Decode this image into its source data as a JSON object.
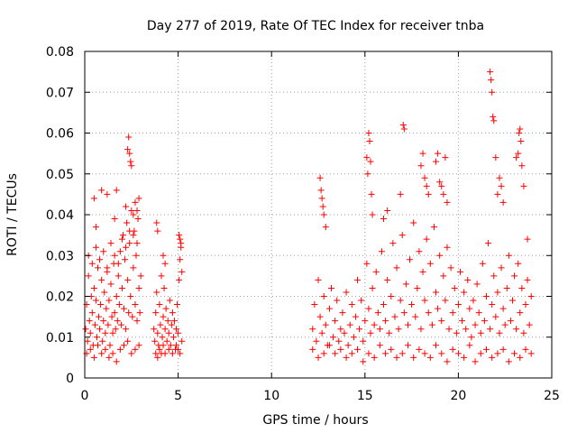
{
  "chart_data": {
    "type": "scatter",
    "title": "Day 277 of 2019, Rate Of TEC Index for receiver tnba",
    "xlabel": "GPS time / hours",
    "ylabel": "ROTI / TECUs",
    "xlim": [
      0,
      25
    ],
    "ylim": [
      0,
      0.08
    ],
    "xticks": [
      0,
      5,
      10,
      15,
      20,
      25
    ],
    "xtick_labels": [
      "0",
      "5",
      "10",
      "15",
      "20",
      "25"
    ],
    "yticks": [
      0,
      0.01,
      0.02,
      0.03,
      0.04,
      0.05,
      0.06,
      0.07,
      0.08
    ],
    "ytick_labels": [
      "0",
      "0.01",
      "0.02",
      "0.03",
      "0.04",
      "0.05",
      "0.06",
      "0.07",
      "0.08"
    ],
    "grid": true,
    "legend": "none",
    "marker": "plus",
    "color": "#ff0000",
    "series": [
      {
        "x": [
          0.05,
          0.1,
          0.15,
          0.2,
          0.25,
          0.3,
          0.35,
          0.4,
          0.45,
          0.5,
          0.55,
          0.6,
          0.65,
          0.7,
          0.75,
          0.8,
          0.85,
          0.9,
          0.95,
          1.0,
          1.05,
          1.1,
          1.15,
          1.2,
          1.25,
          1.3,
          1.35,
          1.4,
          1.45,
          1.5,
          1.55,
          1.6,
          1.65,
          1.7,
          1.75,
          1.8,
          1.85,
          1.9,
          1.95,
          2.0,
          2.05,
          2.1,
          2.15,
          2.2,
          2.25,
          2.3,
          2.35,
          2.4,
          2.45,
          2.5,
          2.55,
          2.6,
          2.65,
          2.7,
          2.75,
          2.8,
          2.85,
          2.9,
          2.95,
          3.0,
          0.1,
          0.3,
          0.5,
          0.7,
          0.9,
          1.1,
          1.3,
          1.5,
          1.7,
          1.9,
          2.1,
          2.3,
          2.5,
          2.7,
          2.9,
          0.2,
          0.4,
          0.6,
          0.8,
          1.0,
          1.2,
          1.4,
          1.6,
          1.8,
          2.0,
          2.2,
          2.4,
          2.6,
          2.8,
          0.5,
          0.6,
          0.9,
          1.2,
          1.6,
          1.7,
          2.2,
          2.3,
          2.35,
          2.4,
          2.45,
          2.5,
          2.6,
          2.7,
          2.8,
          2.9
        ],
        "y": [
          0.012,
          0.018,
          0.009,
          0.025,
          0.014,
          0.011,
          0.02,
          0.016,
          0.008,
          0.022,
          0.013,
          0.019,
          0.01,
          0.027,
          0.015,
          0.012,
          0.018,
          0.024,
          0.009,
          0.014,
          0.021,
          0.011,
          0.017,
          0.026,
          0.013,
          0.019,
          0.008,
          0.023,
          0.015,
          0.011,
          0.028,
          0.016,
          0.012,
          0.02,
          0.014,
          0.025,
          0.018,
          0.031,
          0.013,
          0.022,
          0.035,
          0.017,
          0.029,
          0.012,
          0.038,
          0.024,
          0.016,
          0.033,
          0.02,
          0.041,
          0.015,
          0.027,
          0.036,
          0.018,
          0.03,
          0.014,
          0.039,
          0.022,
          0.016,
          0.025,
          0.006,
          0.007,
          0.005,
          0.008,
          0.006,
          0.007,
          0.005,
          0.006,
          0.004,
          0.007,
          0.008,
          0.009,
          0.006,
          0.007,
          0.008,
          0.03,
          0.028,
          0.032,
          0.029,
          0.031,
          0.027,
          0.033,
          0.03,
          0.028,
          0.034,
          0.032,
          0.036,
          0.035,
          0.033,
          0.044,
          0.037,
          0.046,
          0.045,
          0.039,
          0.046,
          0.042,
          0.056,
          0.059,
          0.055,
          0.053,
          0.052,
          0.04,
          0.043,
          0.041,
          0.044
        ]
      },
      {
        "x": [
          3.7,
          3.75,
          3.8,
          3.85,
          3.9,
          3.95,
          4.0,
          4.05,
          4.1,
          4.15,
          4.2,
          4.25,
          4.3,
          4.35,
          4.4,
          4.45,
          4.5,
          4.55,
          4.6,
          4.65,
          4.7,
          4.75,
          4.8,
          4.85,
          4.9,
          4.95,
          5.0,
          5.05,
          5.1,
          5.15,
          5.2,
          3.8,
          3.9,
          4.0,
          4.1,
          4.2,
          4.3,
          4.5,
          4.7,
          4.9,
          5.0,
          5.1,
          5.2,
          3.85,
          3.9,
          4.2,
          4.3,
          5.05,
          5.1,
          5.15
        ],
        "y": [
          0.012,
          0.009,
          0.016,
          0.021,
          0.011,
          0.008,
          0.018,
          0.013,
          0.025,
          0.01,
          0.015,
          0.022,
          0.012,
          0.017,
          0.009,
          0.014,
          0.011,
          0.019,
          0.008,
          0.013,
          0.016,
          0.01,
          0.014,
          0.007,
          0.012,
          0.018,
          0.011,
          0.024,
          0.029,
          0.033,
          0.026,
          0.006,
          0.005,
          0.007,
          0.006,
          0.008,
          0.006,
          0.007,
          0.006,
          0.008,
          0.007,
          0.006,
          0.009,
          0.038,
          0.036,
          0.03,
          0.028,
          0.035,
          0.034,
          0.032
        ]
      },
      {
        "x": [
          12.2,
          12.3,
          12.4,
          12.5,
          12.6,
          12.7,
          12.8,
          12.9,
          13.0,
          13.1,
          13.2,
          13.3,
          13.4,
          13.5,
          13.6,
          13.7,
          13.8,
          13.9,
          14.0,
          14.1,
          14.2,
          14.3,
          14.4,
          14.5,
          14.6,
          14.7,
          14.8,
          14.9,
          15.0,
          15.1,
          15.2,
          15.3,
          15.4,
          15.5,
          15.6,
          15.7,
          15.8,
          15.9,
          16.0,
          16.1,
          16.2,
          16.3,
          16.4,
          16.5,
          16.6,
          16.7,
          16.8,
          16.9,
          17.0,
          17.1,
          17.2,
          17.3,
          17.4,
          17.5,
          17.6,
          17.7,
          17.8,
          17.9,
          18.0,
          18.1,
          18.2,
          18.3,
          18.4,
          18.5,
          18.6,
          18.7,
          18.8,
          18.9,
          19.0,
          19.1,
          19.2,
          19.3,
          19.4,
          19.5,
          19.6,
          19.7,
          19.8,
          19.9,
          20.0,
          20.1,
          20.2,
          20.3,
          20.4,
          20.5,
          20.6,
          20.7,
          20.8,
          20.9,
          21.0,
          21.1,
          21.2,
          21.3,
          21.4,
          21.5,
          21.6,
          21.7,
          21.8,
          21.9,
          22.0,
          22.1,
          22.2,
          22.3,
          22.4,
          22.5,
          22.6,
          22.7,
          22.8,
          22.9,
          23.0,
          23.1,
          23.2,
          23.3,
          23.4,
          23.5,
          23.6,
          23.7,
          23.8,
          23.9
        ],
        "y": [
          0.012,
          0.018,
          0.009,
          0.024,
          0.015,
          0.011,
          0.02,
          0.013,
          0.008,
          0.017,
          0.022,
          0.01,
          0.014,
          0.019,
          0.009,
          0.012,
          0.016,
          0.011,
          0.021,
          0.008,
          0.013,
          0.018,
          0.01,
          0.015,
          0.024,
          0.012,
          0.019,
          0.009,
          0.014,
          0.028,
          0.017,
          0.011,
          0.022,
          0.013,
          0.026,
          0.016,
          0.012,
          0.031,
          0.018,
          0.014,
          0.024,
          0.011,
          0.02,
          0.033,
          0.015,
          0.027,
          0.012,
          0.019,
          0.035,
          0.016,
          0.023,
          0.013,
          0.029,
          0.018,
          0.038,
          0.015,
          0.022,
          0.031,
          0.012,
          0.026,
          0.019,
          0.034,
          0.016,
          0.028,
          0.013,
          0.037,
          0.021,
          0.017,
          0.03,
          0.014,
          0.025,
          0.019,
          0.032,
          0.012,
          0.027,
          0.016,
          0.022,
          0.011,
          0.018,
          0.026,
          0.014,
          0.021,
          0.012,
          0.024,
          0.017,
          0.01,
          0.019,
          0.013,
          0.023,
          0.016,
          0.011,
          0.028,
          0.014,
          0.02,
          0.033,
          0.012,
          0.018,
          0.025,
          0.015,
          0.021,
          0.011,
          0.027,
          0.017,
          0.013,
          0.022,
          0.03,
          0.014,
          0.019,
          0.025,
          0.012,
          0.028,
          0.016,
          0.022,
          0.011,
          0.018,
          0.024,
          0.013,
          0.02
        ]
      },
      {
        "x": [
          12.2,
          12.5,
          12.8,
          13.1,
          13.4,
          13.7,
          14.0,
          14.3,
          14.6,
          14.9,
          15.2,
          15.5,
          15.8,
          16.1,
          16.4,
          16.7,
          17.0,
          17.3,
          17.6,
          17.9,
          18.2,
          18.5,
          18.8,
          19.1,
          19.4,
          19.7,
          20.0,
          20.3,
          20.6,
          20.9,
          21.2,
          21.5,
          21.8,
          22.1,
          22.4,
          22.7,
          23.0,
          23.3,
          23.6,
          23.9
        ],
        "y": [
          0.007,
          0.005,
          0.006,
          0.008,
          0.006,
          0.007,
          0.005,
          0.006,
          0.007,
          0.004,
          0.006,
          0.005,
          0.008,
          0.006,
          0.007,
          0.005,
          0.006,
          0.008,
          0.005,
          0.007,
          0.006,
          0.005,
          0.008,
          0.006,
          0.004,
          0.007,
          0.006,
          0.005,
          0.008,
          0.004,
          0.006,
          0.007,
          0.005,
          0.006,
          0.007,
          0.004,
          0.006,
          0.005,
          0.007,
          0.006
        ]
      },
      {
        "x": [
          12.6,
          12.65,
          12.7,
          12.75,
          12.8,
          12.9,
          15.1,
          15.15,
          15.2,
          15.25,
          15.3,
          15.35,
          15.4,
          16.0,
          16.2,
          16.9,
          17.05,
          17.1,
          18.0,
          18.1,
          18.2,
          18.3,
          18.4,
          18.8,
          18.9,
          19.0,
          19.1,
          19.2,
          19.3,
          19.4,
          21.7,
          21.75,
          21.8,
          21.85,
          21.9,
          22.0,
          22.1,
          22.2,
          22.3,
          22.4,
          23.1,
          23.2,
          23.25,
          23.3,
          23.35,
          23.4,
          23.5,
          23.7
        ],
        "y": [
          0.049,
          0.046,
          0.044,
          0.042,
          0.04,
          0.037,
          0.054,
          0.05,
          0.06,
          0.058,
          0.053,
          0.045,
          0.04,
          0.039,
          0.041,
          0.045,
          0.062,
          0.061,
          0.052,
          0.055,
          0.049,
          0.047,
          0.045,
          0.053,
          0.055,
          0.048,
          0.047,
          0.045,
          0.054,
          0.043,
          0.075,
          0.073,
          0.07,
          0.064,
          0.063,
          0.054,
          0.045,
          0.049,
          0.047,
          0.043,
          0.054,
          0.055,
          0.06,
          0.061,
          0.058,
          0.052,
          0.047,
          0.034
        ]
      }
    ]
  }
}
